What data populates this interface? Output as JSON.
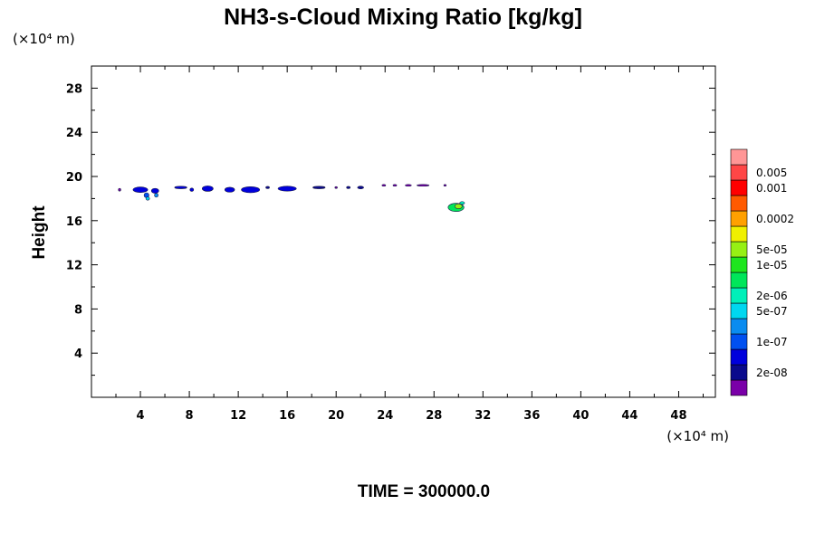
{
  "chart_data": {
    "type": "heatmap",
    "title": "NH3-s-Cloud Mixing Ratio [kg/kg]",
    "ylabel": "Height",
    "x_unit": "(×10⁴ m)",
    "y_unit": "(×10⁴ m)",
    "xlim": [
      0,
      51
    ],
    "ylim": [
      0,
      30
    ],
    "x_ticks": [
      4,
      8,
      12,
      16,
      20,
      24,
      28,
      32,
      36,
      40,
      44,
      48
    ],
    "y_ticks": [
      4,
      8,
      12,
      16,
      20,
      24,
      28
    ],
    "colorbar": {
      "colors": [
        "#7a00a8",
        "#0a0a8c",
        "#0000dc",
        "#0050f0",
        "#0a8cf0",
        "#00d7f0",
        "#00f0b9",
        "#00e65a",
        "#1ee61e",
        "#96f014",
        "#f0f000",
        "#ffa000",
        "#ff5a00",
        "#ff0000",
        "#ff4646",
        "#ff9696"
      ],
      "labels": [
        {
          "text": "2e-08",
          "index": 1
        },
        {
          "text": "1e-07",
          "index": 3
        },
        {
          "text": "5e-07",
          "index": 5
        },
        {
          "text": "2e-06",
          "index": 6
        },
        {
          "text": "1e-05",
          "index": 8
        },
        {
          "text": "5e-05",
          "index": 9
        },
        {
          "text": "0.0002",
          "index": 11
        },
        {
          "text": "0.001",
          "index": 13
        },
        {
          "text": "0.005",
          "index": 14
        }
      ]
    },
    "cloud_blobs": [
      {
        "x": 2.3,
        "y": 18.8,
        "w": 0.2,
        "h": 0.25,
        "c": 0
      },
      {
        "x": 4.0,
        "y": 18.8,
        "w": 1.2,
        "h": 0.5,
        "c": 2
      },
      {
        "x": 4.5,
        "y": 18.3,
        "w": 0.4,
        "h": 0.45,
        "c": 3
      },
      {
        "x": 4.6,
        "y": 18.0,
        "w": 0.3,
        "h": 0.3,
        "c": 5
      },
      {
        "x": 5.2,
        "y": 18.7,
        "w": 0.6,
        "h": 0.45,
        "c": 2
      },
      {
        "x": 5.3,
        "y": 18.3,
        "w": 0.3,
        "h": 0.35,
        "c": 4
      },
      {
        "x": 7.3,
        "y": 19.0,
        "w": 1.0,
        "h": 0.22,
        "c": 2
      },
      {
        "x": 8.2,
        "y": 18.8,
        "w": 0.3,
        "h": 0.3,
        "c": 2
      },
      {
        "x": 9.5,
        "y": 18.9,
        "w": 0.9,
        "h": 0.5,
        "c": 2
      },
      {
        "x": 11.3,
        "y": 18.8,
        "w": 0.8,
        "h": 0.45,
        "c": 2
      },
      {
        "x": 13.0,
        "y": 18.8,
        "w": 1.5,
        "h": 0.55,
        "c": 2
      },
      {
        "x": 14.4,
        "y": 19.0,
        "w": 0.3,
        "h": 0.2,
        "c": 1
      },
      {
        "x": 16.0,
        "y": 18.9,
        "w": 1.5,
        "h": 0.45,
        "c": 2
      },
      {
        "x": 18.6,
        "y": 19.0,
        "w": 1.0,
        "h": 0.22,
        "c": 1
      },
      {
        "x": 20.0,
        "y": 19.0,
        "w": 0.2,
        "h": 0.15,
        "c": 0
      },
      {
        "x": 21.0,
        "y": 19.0,
        "w": 0.3,
        "h": 0.2,
        "c": 1
      },
      {
        "x": 22.0,
        "y": 19.0,
        "w": 0.5,
        "h": 0.25,
        "c": 1
      },
      {
        "x": 23.9,
        "y": 19.2,
        "w": 0.3,
        "h": 0.12,
        "c": 0
      },
      {
        "x": 24.8,
        "y": 19.2,
        "w": 0.3,
        "h": 0.12,
        "c": 0
      },
      {
        "x": 25.9,
        "y": 19.2,
        "w": 0.5,
        "h": 0.12,
        "c": 0
      },
      {
        "x": 27.1,
        "y": 19.2,
        "w": 1.0,
        "h": 0.15,
        "c": 0
      },
      {
        "x": 28.9,
        "y": 19.2,
        "w": 0.2,
        "h": 0.1,
        "c": 0
      },
      {
        "x": 29.8,
        "y": 17.2,
        "w": 1.3,
        "h": 0.75,
        "c": 7
      },
      {
        "x": 30.0,
        "y": 17.3,
        "w": 0.6,
        "h": 0.45,
        "c": 9
      },
      {
        "x": 30.3,
        "y": 17.6,
        "w": 0.4,
        "h": 0.25,
        "c": 6
      }
    ]
  },
  "time_label": "TIME = 300000.0"
}
